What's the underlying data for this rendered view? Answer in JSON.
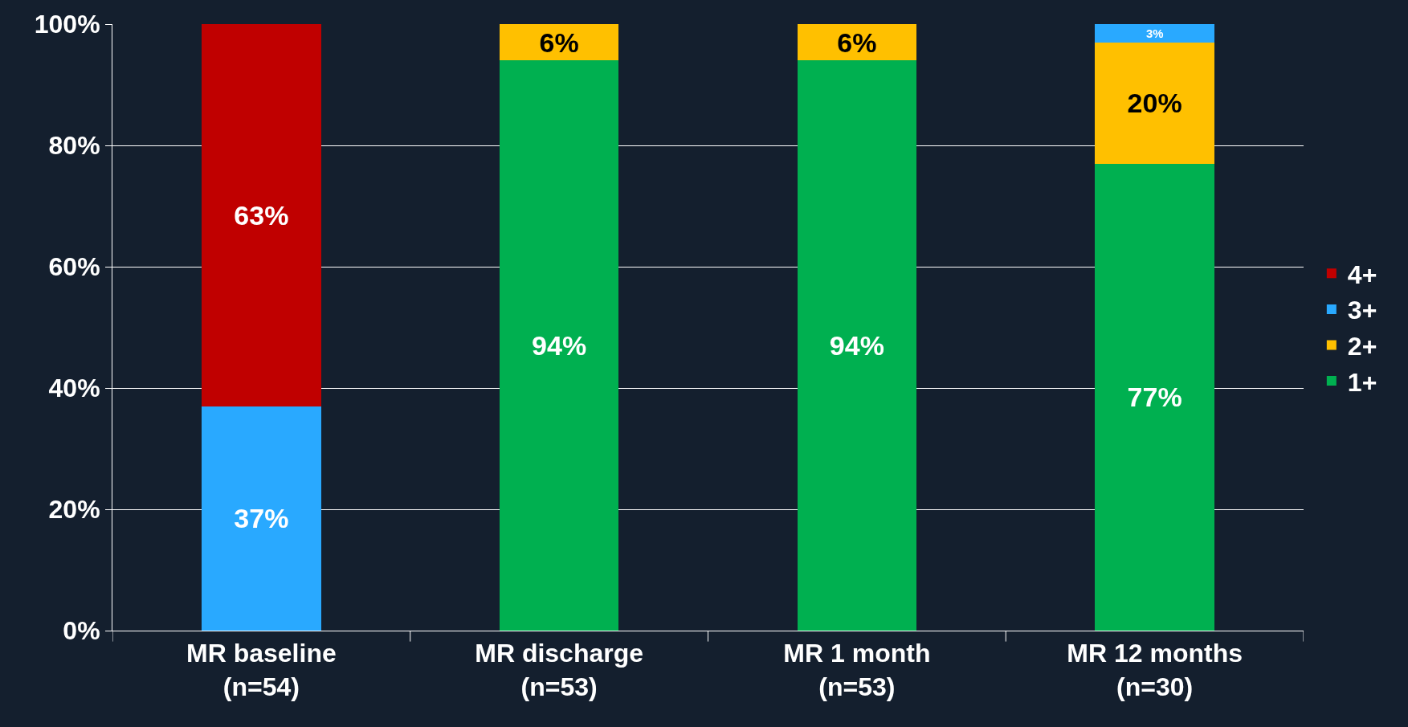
{
  "chart_data": {
    "type": "bar",
    "stacked": true,
    "categories": [
      "MR baseline\n(n=54)",
      "MR discharge\n(n=53)",
      "MR 1 month\n(n=53)",
      "MR 12 months\n(n=30)"
    ],
    "series": [
      {
        "name": "1+",
        "color": "#00b050",
        "values": [
          null,
          94,
          94,
          77
        ],
        "value_labels": [
          null,
          "94%",
          "94%",
          "77%"
        ]
      },
      {
        "name": "2+",
        "color": "#ffc000",
        "values": [
          null,
          6,
          6,
          20
        ],
        "value_labels": [
          null,
          "6%",
          "6%",
          "20%"
        ]
      },
      {
        "name": "3+",
        "color": "#29a9ff",
        "values": [
          37,
          null,
          null,
          3
        ],
        "value_labels": [
          "37%",
          null,
          null,
          "3%"
        ]
      },
      {
        "name": "4+",
        "color": "#c00000",
        "values": [
          63,
          null,
          null,
          null
        ],
        "value_labels": [
          "63%",
          null,
          null,
          null
        ]
      }
    ],
    "ylim": [
      0,
      100
    ],
    "yticks": [
      {
        "value": 0,
        "label": "0%"
      },
      {
        "value": 20,
        "label": "20%"
      },
      {
        "value": 40,
        "label": "40%"
      },
      {
        "value": 60,
        "label": "60%"
      },
      {
        "value": 80,
        "label": "80%"
      },
      {
        "value": 100,
        "label": "100%"
      }
    ],
    "grid": "y",
    "legend": "right"
  }
}
